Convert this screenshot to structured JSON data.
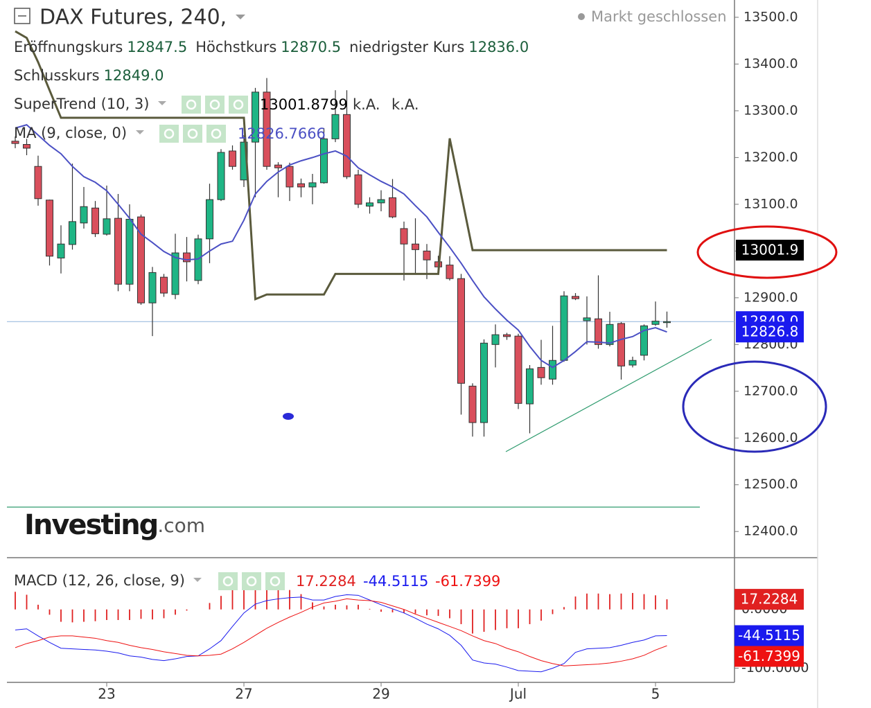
{
  "chart_data": [
    {
      "type": "candlestick",
      "title": "DAX Futures, 240,",
      "status": "Markt geschlossen",
      "legend": [
        {
          "name": "Eröffnungskurs",
          "label": "12847.5"
        },
        {
          "name": "Höchstkurs",
          "label": "12870.5"
        },
        {
          "name": "niedrigster Kurs",
          "label": "12836.0"
        },
        {
          "name": "Schlusskurs",
          "label": "12849.0"
        }
      ],
      "open": [
        13235,
        13228,
        13181,
        13109,
        12985,
        13014,
        13060,
        13092,
        13036,
        13070,
        12929,
        13073,
        12889,
        12944,
        12907,
        12996,
        12937,
        13026,
        13110,
        13214,
        13152,
        13233,
        13340,
        13184,
        13181,
        13144,
        13137,
        13146,
        13240,
        13292,
        13163,
        13096,
        13103,
        13114,
        13048,
        13015,
        13000,
        12977,
        12970,
        12941,
        12711,
        12633,
        12800,
        12821,
        12818,
        12673,
        12751,
        12726,
        12766,
        12903,
        12851,
        12855,
        12800,
        12845,
        12756,
        12777,
        12843,
        12847.5
      ],
      "high": [
        13245,
        13240,
        13204,
        13110,
        13055,
        13187,
        13137,
        13107,
        13140,
        13122,
        13100,
        13078,
        12966,
        12951,
        13037,
        13030,
        13035,
        13144,
        13218,
        13226,
        13248,
        13349,
        13370,
        13190,
        13189,
        13155,
        13165,
        13263,
        13344,
        13344,
        13174,
        13115,
        13130,
        13154,
        13063,
        13070,
        13015,
        12990,
        12989,
        12951,
        12717,
        12811,
        12843,
        12825,
        12823,
        12756,
        12810,
        12840,
        12914,
        12910,
        12903,
        12948,
        12870,
        12848,
        12774,
        12843,
        12892,
        12870.5
      ],
      "low": [
        13220,
        13205,
        13097,
        12969,
        12952,
        13003,
        13048,
        13030,
        13033,
        12914,
        12914,
        12885,
        12818,
        12902,
        12897,
        12935,
        12929,
        12974,
        13107,
        13174,
        13137,
        13115,
        13174,
        13115,
        13107,
        13115,
        13100,
        13144,
        13233,
        13154,
        13092,
        13080,
        13085,
        13070,
        12937,
        12951,
        12940,
        12950,
        12937,
        12650,
        12603,
        12603,
        12751,
        12810,
        12662,
        12610,
        12714,
        12714,
        12763,
        12895,
        12800,
        12791,
        12796,
        12725,
        12751,
        12766,
        12840,
        12836
      ],
      "close": [
        13230,
        13220,
        13112,
        12989,
        13015,
        13063,
        13095,
        13037,
        13069,
        12929,
        13068,
        12889,
        12954,
        12910,
        12996,
        12977,
        13026,
        13110,
        13211,
        13181,
        13233,
        13340,
        13181,
        13178,
        13137,
        13137,
        13146,
        13240,
        13292,
        13159,
        13100,
        13103,
        13110,
        13073,
        13015,
        13003,
        12981,
        12966,
        12941,
        12717,
        12633,
        12803,
        12821,
        12817,
        12674,
        12748,
        12729,
        12766,
        12904,
        12898,
        12857,
        12800,
        12843,
        12754,
        12766,
        12840,
        12850,
        12849
      ],
      "up_color": "#1fb585",
      "down_color": "#d94f5c",
      "series": [
        {
          "name": "SuperTrend (10, 3)",
          "color": "#5a5a3c",
          "notes": [
            "k.A.",
            "k.A."
          ],
          "values": [
            13470,
            13456,
            13404,
            13344,
            13285,
            13285,
            13285,
            13285,
            13285,
            13285,
            13285,
            13285,
            13285,
            13285,
            13285,
            13285,
            13285,
            13285,
            13285,
            13285,
            13285,
            12897,
            12907,
            12907,
            12907,
            12907,
            12907,
            12907,
            12951,
            12951,
            12951,
            12951,
            12951,
            12951,
            12951,
            12951,
            12951,
            12951,
            13241,
            13122,
            13001.8799,
            13001.8799,
            13001.8799,
            13001.8799,
            13001.8799,
            13001.8799,
            13001.8799,
            13001.8799,
            13001.8799,
            13001.8799,
            13001.8799,
            13001.8799,
            13001.8799,
            13001.8799,
            13001.8799,
            13001.8799,
            13001.8799,
            13001.8799
          ]
        },
        {
          "name": "MA (9, close, 0)",
          "color": "#4b50c4",
          "values": [
            13263,
            13270,
            13248,
            13226,
            13208,
            13181,
            13159,
            13147,
            13129,
            13100,
            13070,
            13036,
            13018,
            12999,
            12986,
            12981,
            12983,
            13000,
            13015,
            13021,
            13066,
            13122,
            13149,
            13169,
            13184,
            13193,
            13200,
            13208,
            13214,
            13203,
            13178,
            13163,
            13149,
            13137,
            13122,
            13097,
            13073,
            13040,
            13008,
            12974,
            12937,
            12902,
            12876,
            12852,
            12831,
            12796,
            12766,
            12751,
            12766,
            12785,
            12806,
            12805,
            12803,
            12811,
            12817,
            12830,
            12836,
            12826.7666
          ]
        }
      ],
      "badges": [
        {
          "value": 13001.8799,
          "label": "13001.9",
          "color": "#000000"
        },
        {
          "value": 12849,
          "label": "12849.0",
          "color": "#1a1aee"
        },
        {
          "value": 12826.7666,
          "label": "12826.8",
          "color": "#1a1aee"
        }
      ],
      "ylim": [
        12344,
        13537
      ],
      "yticks": [
        {
          "value": 12400,
          "label": "12400.0"
        },
        {
          "value": 12500,
          "label": "12500.0"
        },
        {
          "value": 12600,
          "label": "12600.0"
        },
        {
          "value": 12700,
          "label": "12700.0"
        },
        {
          "value": 12800,
          "label": "12800.0"
        },
        {
          "value": 12900,
          "label": "12900.0"
        },
        {
          "value": 13000,
          "label": "13000.0"
        },
        {
          "value": 13100,
          "label": "13100.0"
        },
        {
          "value": 13200,
          "label": "13200.0"
        },
        {
          "value": 13300,
          "label": "13300.0"
        },
        {
          "value": 13400,
          "label": "13400.0"
        },
        {
          "value": 13500,
          "label": "13500.0"
        }
      ],
      "grid": false,
      "watermark": "Investing",
      "watermark_suffix": ".com"
    },
    {
      "type": "macd",
      "name": "MACD (12, 26, close, 9)",
      "categories": [
        null,
        null,
        null,
        null,
        null,
        null,
        null,
        null,
        "23",
        null,
        null,
        null,
        null,
        null,
        null,
        null,
        null,
        null,
        null,
        null,
        "27",
        null,
        null,
        null,
        null,
        null,
        null,
        null,
        null,
        null,
        null,
        null,
        "29",
        null,
        null,
        null,
        null,
        null,
        null,
        null,
        null,
        null,
        null,
        null,
        "Jul",
        null,
        null,
        null,
        null,
        null,
        null,
        null,
        null,
        null,
        null,
        null,
        "5",
        null
      ],
      "series": [
        {
          "kind": "bar",
          "color": "#e02020",
          "values": [
            30,
            25,
            8,
            -9,
            -21,
            -22,
            -21,
            -20,
            -18,
            -18,
            -18,
            -16,
            -17,
            -15,
            -9,
            -2,
            0,
            11,
            23,
            38,
            50,
            53,
            47,
            40,
            33,
            26,
            12,
            5,
            8,
            7,
            8,
            1,
            -4,
            -5,
            -6,
            -7,
            -10,
            -11,
            -15,
            -25,
            -41,
            -38,
            -35,
            -32,
            -32,
            -25,
            -19,
            -8,
            4,
            22,
            27,
            27,
            26,
            27,
            28,
            26,
            24,
            17.2284
          ]
        },
        {
          "kind": "line",
          "color": "#1a1aee",
          "values": [
            -35,
            -33,
            -45,
            -56,
            -66,
            -67,
            -68,
            -69,
            -71,
            -74,
            -79,
            -81,
            -85,
            -87,
            -84,
            -80,
            -79,
            -67,
            -53,
            -29,
            -6,
            9,
            15,
            18,
            20,
            21,
            16,
            16,
            22,
            25,
            24,
            16,
            8,
            1,
            -6,
            -15,
            -25,
            -33,
            -44,
            -61,
            -86,
            -91,
            -93,
            -98,
            -104,
            -105,
            -106,
            -100,
            -92,
            -73,
            -67,
            -66,
            -65,
            -61,
            -56,
            -52,
            -45,
            -44.5115
          ]
        },
        {
          "kind": "line",
          "color": "#ee1111",
          "values": [
            -65,
            -58,
            -53,
            -47,
            -45,
            -45,
            -47,
            -49,
            -53,
            -56,
            -61,
            -65,
            -68,
            -72,
            -75,
            -78,
            -79,
            -78,
            -76,
            -67,
            -56,
            -44,
            -32,
            -22,
            -13,
            -5,
            4,
            11,
            14,
            18,
            16,
            15,
            12,
            6,
            0,
            -8,
            -15,
            -22,
            -29,
            -36,
            -45,
            -53,
            -58,
            -66,
            -72,
            -80,
            -87,
            -92,
            -96,
            -95,
            -94,
            -93,
            -91,
            -88,
            -84,
            -78,
            -69,
            -61.7399
          ]
        }
      ],
      "ylim": [
        -124,
        88
      ],
      "yticks": [
        {
          "value": 0,
          "label": "0.0000"
        },
        {
          "value": -100,
          "label": "-100.0000"
        }
      ]
    }
  ]
}
